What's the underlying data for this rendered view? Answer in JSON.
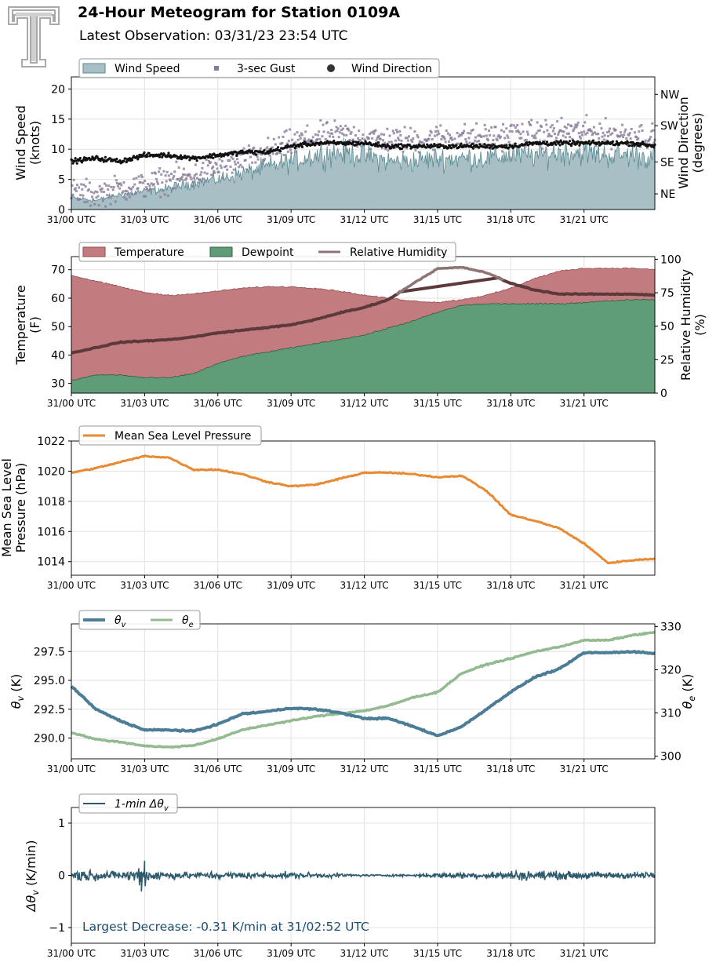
{
  "header": {
    "title": "24-Hour Meteogram for Station 0109A",
    "subtitle": "Latest Observation: 03/31/23 23:54 UTC"
  },
  "colors": {
    "wind_speed": "#a7bfc5",
    "wind_speed_line": "#5b8a93",
    "gust": "#8a7a99",
    "wind_dir": "#111111",
    "temperature": "#c27b7e",
    "dewpoint": "#5f9c78",
    "rh": "#8e7475",
    "rh_dark": "#5c3a3b",
    "mslp": "#e88a32",
    "theta_v": "#4c7d96",
    "theta_e": "#94ba91",
    "dtheta": "#2e5a6e",
    "annotation": "#1d4e6e",
    "logo": "#a9a9a9"
  },
  "chart_data": [
    {
      "type": "area",
      "panel": "wind",
      "x_ticks": [
        "31/00 UTC",
        "31/03 UTC",
        "31/06 UTC",
        "31/09 UTC",
        "31/12 UTC",
        "31/15 UTC",
        "31/18 UTC",
        "31/21 UTC"
      ],
      "ylabel": "Wind Speed\n(knots)",
      "y2label": "Wind Direction\n(degrees)",
      "ylim": [
        0,
        22
      ],
      "y_ticks": [
        "0",
        "5",
        "10",
        "15",
        "20"
      ],
      "y2_ticks": [
        "NE",
        "SE",
        "SW",
        "NW"
      ],
      "legend": [
        "Wind Speed",
        "3-sec Gust",
        "Wind Direction"
      ],
      "series": [
        {
          "name": "Wind Speed",
          "x_hours": [
            0,
            1,
            2,
            3,
            4,
            5,
            6,
            7,
            8,
            9,
            10,
            11,
            12,
            13,
            14,
            15,
            16,
            17,
            18,
            19,
            20,
            21,
            22,
            23,
            24
          ],
          "values": [
            2,
            1.5,
            2.5,
            3,
            3.5,
            4.5,
            5,
            6,
            7,
            8,
            9,
            9.5,
            9,
            8,
            8,
            8.5,
            8.5,
            8.5,
            9,
            9,
            9.5,
            9.5,
            9,
            9,
            8.5
          ]
        },
        {
          "name": "3-sec Gust",
          "x_hours": [
            0,
            1,
            2,
            3,
            4,
            5,
            6,
            7,
            8,
            9,
            10,
            11,
            12,
            13,
            14,
            15,
            16,
            17,
            18,
            19,
            20,
            21,
            22,
            23,
            24
          ],
          "values": [
            3,
            2.5,
            3.5,
            4,
            5,
            5.5,
            7,
            8,
            9.5,
            11,
            12,
            12.5,
            12,
            11.5,
            11.5,
            12,
            12,
            12,
            12.5,
            12.5,
            13,
            13,
            12.5,
            12.5,
            12
          ]
        },
        {
          "name": "Wind Direction",
          "x_hours": [
            0,
            1,
            2,
            3,
            4,
            5,
            6,
            7,
            8,
            9,
            10,
            11,
            12,
            13,
            14,
            15,
            16,
            17,
            18,
            19,
            20,
            21,
            22,
            23,
            24
          ],
          "values": [
            8,
            8.5,
            8,
            9,
            9,
            8.5,
            9,
            9.5,
            9.5,
            10.5,
            11,
            11,
            11,
            10.5,
            10.5,
            10.5,
            10.5,
            10.5,
            10.5,
            11,
            11,
            11,
            11,
            11,
            10.5
          ]
        }
      ]
    },
    {
      "type": "area",
      "panel": "temperature",
      "x_ticks": [
        "31/00 UTC",
        "31/03 UTC",
        "31/06 UTC",
        "31/09 UTC",
        "31/12 UTC",
        "31/15 UTC",
        "31/18 UTC",
        "31/21 UTC"
      ],
      "ylabel": "Temperature\n(F)",
      "y2label": "Relative Humidity\n(%)",
      "ylim": [
        26.6,
        74.6
      ],
      "y2lim": [
        0,
        102
      ],
      "y_ticks": [
        "30",
        "40",
        "50",
        "60",
        "70"
      ],
      "y2_ticks": [
        "0",
        "25",
        "50",
        "75",
        "100"
      ],
      "legend": [
        "Temperature",
        "Dewpoint",
        "Relative Humidity"
      ],
      "series": [
        {
          "name": "Temperature",
          "x_hours": [
            0,
            1,
            2,
            3,
            4,
            5,
            6,
            7,
            8,
            9,
            10,
            11,
            12,
            13,
            14,
            15,
            16,
            17,
            18,
            19,
            20,
            21,
            22,
            23,
            24
          ],
          "values": [
            68,
            66,
            64,
            62,
            61,
            61.5,
            62.5,
            63.5,
            64,
            64,
            63.5,
            62.5,
            61,
            60,
            59,
            58.5,
            59.5,
            61,
            63.5,
            67,
            69.5,
            70.5,
            70.5,
            70.5,
            70
          ]
        },
        {
          "name": "Dewpoint",
          "x_hours": [
            0,
            1,
            2,
            3,
            4,
            5,
            6,
            7,
            8,
            9,
            10,
            11,
            12,
            13,
            14,
            15,
            16,
            17,
            18,
            19,
            20,
            21,
            22,
            23,
            24
          ],
          "values": [
            31,
            33,
            33,
            32,
            32,
            33.5,
            37,
            39.5,
            41,
            42.5,
            44,
            45.5,
            47,
            49.5,
            52,
            55,
            57.5,
            58,
            58,
            58,
            58,
            58.5,
            59,
            59.5,
            59.5
          ]
        },
        {
          "name": "Relative Humidity",
          "x_hours": [
            0,
            1,
            2,
            3,
            4,
            5,
            6,
            7,
            8,
            9,
            10,
            11,
            12,
            13,
            14,
            15,
            16,
            17,
            18,
            19,
            20,
            21,
            22,
            23,
            24
          ],
          "values": [
            30,
            34,
            38,
            39,
            40,
            42,
            45,
            47,
            49,
            51,
            55,
            60,
            64,
            70,
            82,
            93,
            94,
            90,
            82,
            77,
            74,
            74,
            74,
            74,
            73
          ]
        }
      ]
    },
    {
      "type": "line",
      "panel": "mslp",
      "x_ticks": [
        "31/00 UTC",
        "31/03 UTC",
        "31/06 UTC",
        "31/09 UTC",
        "31/12 UTC",
        "31/15 UTC",
        "31/18 UTC",
        "31/21 UTC"
      ],
      "ylabel": "Mean Sea Level\nPressure (hPa)",
      "ylim": [
        1013.1,
        1022.0
      ],
      "y_ticks": [
        "1014",
        "1016",
        "1018",
        "1020",
        "1022"
      ],
      "legend": [
        "Mean Sea Level Pressure"
      ],
      "series": [
        {
          "name": "Mean Sea Level Pressure",
          "x_hours": [
            0,
            1,
            2,
            3,
            4,
            5,
            6,
            7,
            8,
            9,
            10,
            11,
            12,
            13,
            14,
            15,
            16,
            17,
            18,
            19,
            20,
            21,
            22,
            23,
            24
          ],
          "values": [
            1019.9,
            1020.2,
            1020.6,
            1021,
            1020.9,
            1020.1,
            1020.1,
            1019.8,
            1019.3,
            1019.0,
            1019.1,
            1019.5,
            1019.9,
            1019.9,
            1019.8,
            1019.6,
            1019.7,
            1018.7,
            1017.1,
            1016.7,
            1016.2,
            1015.2,
            1013.9,
            1014.1,
            1014.2
          ]
        }
      ]
    },
    {
      "type": "line",
      "panel": "theta",
      "x_ticks": [
        "31/00 UTC",
        "31/03 UTC",
        "31/06 UTC",
        "31/09 UTC",
        "31/12 UTC",
        "31/15 UTC",
        "31/18 UTC",
        "31/21 UTC"
      ],
      "ylabel": "θv (K)",
      "y2label": "θe (K)",
      "ylim": [
        288.2,
        299.9
      ],
      "y2lim": [
        299.4,
        330.6
      ],
      "y_ticks": [
        "290.0",
        "292.5",
        "295.0",
        "297.5"
      ],
      "y2_ticks": [
        "300",
        "310",
        "320",
        "330"
      ],
      "legend": [
        "θv",
        "θe"
      ],
      "series": [
        {
          "name": "θv",
          "x_hours": [
            0,
            1,
            2,
            3,
            4,
            5,
            6,
            7,
            8,
            9,
            10,
            11,
            12,
            13,
            14,
            15,
            16,
            17,
            18,
            19,
            20,
            21,
            22,
            23,
            24
          ],
          "values": [
            294.5,
            292.5,
            291.5,
            290.7,
            290.7,
            290.6,
            291.2,
            292.1,
            292.3,
            292.6,
            292.5,
            292.2,
            291.7,
            291.7,
            291.0,
            290.2,
            291.0,
            292.5,
            294.0,
            295.3,
            296.0,
            297.4,
            297.4,
            297.5,
            297.3
          ]
        },
        {
          "name": "θe",
          "x_hours": [
            0,
            1,
            2,
            3,
            4,
            5,
            6,
            7,
            8,
            9,
            10,
            11,
            12,
            13,
            14,
            15,
            16,
            17,
            18,
            19,
            20,
            21,
            22,
            23,
            24
          ],
          "values": [
            305.5,
            303.9,
            303.3,
            302.4,
            302.1,
            302.5,
            304.0,
            306.1,
            307.2,
            308.2,
            309.2,
            309.9,
            310.5,
            311.7,
            313.6,
            314.8,
            319.2,
            321.2,
            322.6,
            324.2,
            325.3,
            326.8,
            326.8,
            328.0,
            328.7
          ]
        }
      ]
    },
    {
      "type": "line",
      "panel": "dtheta",
      "x_ticks": [
        "31/00 UTC",
        "31/03 UTC",
        "31/06 UTC",
        "31/09 UTC",
        "31/12 UTC",
        "31/15 UTC",
        "31/18 UTC",
        "31/21 UTC"
      ],
      "ylabel": "Δθv (K/min)",
      "ylim": [
        -1.3,
        1.3
      ],
      "y_ticks": [
        "−1",
        "0",
        "1"
      ],
      "legend": [
        "1-min Δθv"
      ],
      "annotation": "Largest Decrease: -0.31 K/min at 31/02:52 UTC",
      "series": [
        {
          "name": "1-min Δθv",
          "x_hours": [
            0,
            1,
            2,
            2.87,
            3,
            4,
            5,
            6,
            7,
            8,
            9,
            10,
            11,
            12,
            13,
            14,
            15,
            16,
            17,
            18,
            19,
            20,
            21,
            22,
            23,
            24
          ],
          "values": [
            -0.2,
            0.15,
            -0.12,
            -0.31,
            0.28,
            0.12,
            -0.1,
            0.12,
            0.1,
            -0.08,
            0.1,
            0.08,
            0.06,
            0.03,
            0.03,
            0.04,
            0.08,
            0.1,
            0.1,
            0.15,
            0.15,
            0.12,
            0.12,
            0.1,
            0.1,
            0.1
          ]
        }
      ]
    }
  ]
}
